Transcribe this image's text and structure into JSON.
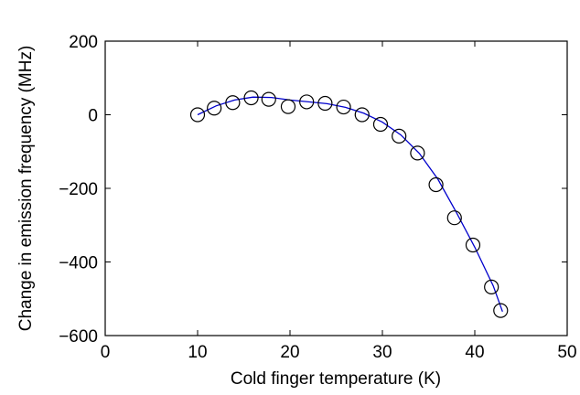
{
  "chart_data": {
    "type": "scatter",
    "title": "",
    "xlabel": "Cold finger temperature (K)",
    "ylabel": "Change in emission frequency (MHz)",
    "xlim": [
      0,
      50
    ],
    "ylim": [
      -600,
      200
    ],
    "x_ticks": [
      0,
      10,
      20,
      30,
      40,
      50
    ],
    "y_ticks": [
      -600,
      -400,
      -200,
      0,
      200
    ],
    "x_tick_labels": [
      "0",
      "10",
      "20",
      "30",
      "40",
      "50"
    ],
    "y_tick_labels": [
      "−600",
      "−400",
      "−200",
      "0",
      "200"
    ],
    "grid": false,
    "series": [
      {
        "marker": "open-circle",
        "color": "#000000",
        "x": [
          10,
          11.8,
          13.8,
          15.8,
          17.7,
          19.8,
          21.8,
          23.8,
          25.8,
          27.8,
          29.8,
          31.8,
          33.8,
          35.8,
          37.8,
          39.8,
          41.8,
          42.8
        ],
        "y": [
          0,
          18,
          33,
          46,
          42,
          22,
          35,
          31,
          21,
          0,
          -26,
          -58,
          -104,
          -190,
          -280,
          -354,
          -468,
          -532
        ]
      },
      {
        "line": "solid",
        "color": "#0000cc",
        "x": [
          10,
          12,
          14,
          16,
          18,
          20,
          22,
          24,
          26,
          28,
          30,
          32,
          34,
          36,
          38,
          40,
          42,
          43
        ],
        "y": [
          0,
          24,
          40,
          48,
          47,
          40,
          35,
          30,
          20,
          4,
          -20,
          -55,
          -105,
          -175,
          -265,
          -360,
          -465,
          -535
        ]
      }
    ]
  }
}
